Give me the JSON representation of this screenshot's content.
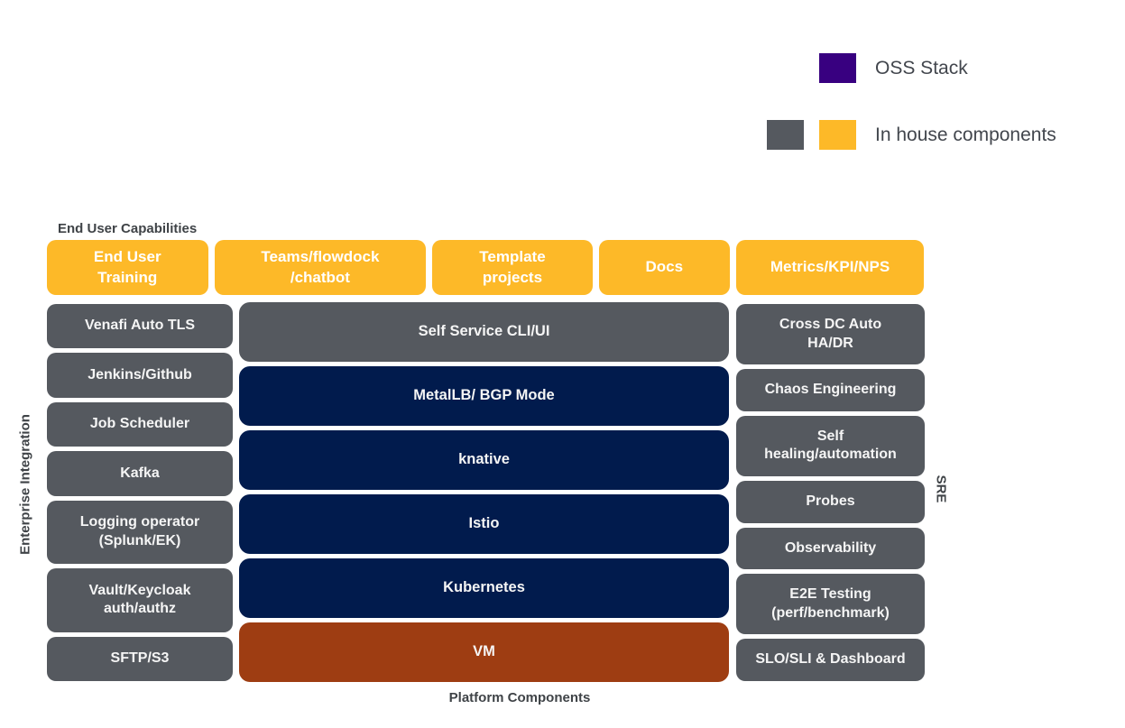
{
  "legend": {
    "oss_label": "OSS Stack",
    "inhouse_label": "In house components"
  },
  "section_labels": {
    "top": "End User Capabilities",
    "bottom": "Platform Components",
    "left_vertical": "Enterprise Integration",
    "right_vertical": "SRE"
  },
  "end_user_row": {
    "items": [
      {
        "label": "End User\nTraining",
        "category": "in-house"
      },
      {
        "label": "Teams/flowdock\n/chatbot",
        "category": "in-house"
      },
      {
        "label": "Template\nprojects",
        "category": "in-house"
      },
      {
        "label": "Docs",
        "category": "in-house"
      },
      {
        "label": "Metrics/KPI/NPS",
        "category": "in-house"
      }
    ]
  },
  "enterprise_integration_column": {
    "items": [
      {
        "label": "Venafi Auto TLS",
        "category": "in-house"
      },
      {
        "label": "Jenkins/Github",
        "category": "in-house"
      },
      {
        "label": "Job Scheduler",
        "category": "in-house"
      },
      {
        "label": "Kafka",
        "category": "in-house"
      },
      {
        "label": "Logging operator\n(Splunk/EK)",
        "category": "in-house"
      },
      {
        "label": "Vault/Keycloak\nauth/authz",
        "category": "in-house"
      },
      {
        "label": "SFTP/S3",
        "category": "in-house"
      }
    ]
  },
  "platform_column": {
    "items": [
      {
        "label": "Self Service CLI/UI",
        "category": "in-house"
      },
      {
        "label": "MetalLB/ BGP Mode",
        "category": "oss"
      },
      {
        "label": "knative",
        "category": "oss"
      },
      {
        "label": "Istio",
        "category": "oss"
      },
      {
        "label": "Kubernetes",
        "category": "oss"
      },
      {
        "label": "VM",
        "category": "vm"
      }
    ]
  },
  "sre_column": {
    "items": [
      {
        "label": "Cross DC Auto\nHA/DR",
        "category": "in-house"
      },
      {
        "label": "Chaos Engineering",
        "category": "in-house"
      },
      {
        "label": "Self\nhealing/automation",
        "category": "in-house"
      },
      {
        "label": "Probes",
        "category": "in-house"
      },
      {
        "label": "Observability",
        "category": "in-house"
      },
      {
        "label": "E2E Testing\n(perf/benchmark)",
        "category": "in-house"
      },
      {
        "label": "SLO/SLI & Dashboard",
        "category": "in-house"
      }
    ]
  },
  "colors": {
    "orange": "#FDB928",
    "gray": "#55595F",
    "navy": "#011B4D",
    "rust": "#9E3D12",
    "purple": "#380080",
    "label_text": "#3F4347",
    "box_text": "#FFFFFF"
  }
}
